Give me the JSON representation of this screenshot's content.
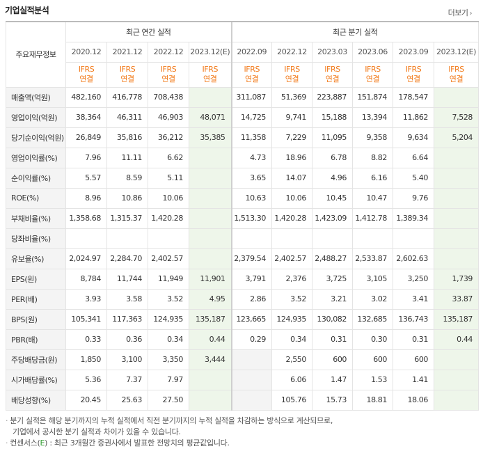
{
  "section": {
    "title": "기업실적분석",
    "more_label": "더보기"
  },
  "headers": {
    "label_col": "주요재무정보",
    "annual_group": "최근 연간 실적",
    "quarterly_group": "최근 분기 실적",
    "annual_periods": [
      "2020.12",
      "2021.12",
      "2022.12",
      "2023.12(E)"
    ],
    "quarterly_periods": [
      "2022.09",
      "2022.12",
      "2023.03",
      "2023.06",
      "2023.09",
      "2023.12(E)"
    ],
    "ifrs_top": "IFRS",
    "ifrs_bottom": "연결"
  },
  "rows": [
    {
      "label": "매출액(억원)",
      "annual": [
        "482,160",
        "416,778",
        "708,438",
        ""
      ],
      "quarterly": [
        "311,087",
        "51,369",
        "223,887",
        "151,874",
        "178,547",
        ""
      ]
    },
    {
      "label": "영업이익(억원)",
      "annual": [
        "38,364",
        "46,311",
        "46,903",
        "48,071"
      ],
      "quarterly": [
        "14,725",
        "9,741",
        "15,188",
        "13,394",
        "11,862",
        "7,528"
      ]
    },
    {
      "label": "당기순이익(억원)",
      "annual": [
        "26,849",
        "35,816",
        "36,212",
        "35,385"
      ],
      "quarterly": [
        "11,358",
        "7,229",
        "11,095",
        "9,358",
        "9,634",
        "5,204"
      ]
    },
    {
      "label": "영업이익률(%)",
      "annual": [
        "7.96",
        "11.11",
        "6.62",
        ""
      ],
      "quarterly": [
        "4.73",
        "18.96",
        "6.78",
        "8.82",
        "6.64",
        ""
      ]
    },
    {
      "label": "순이익률(%)",
      "annual": [
        "5.57",
        "8.59",
        "5.11",
        ""
      ],
      "quarterly": [
        "3.65",
        "14.07",
        "4.96",
        "6.16",
        "5.40",
        ""
      ]
    },
    {
      "label": "ROE(%)",
      "annual": [
        "8.96",
        "10.86",
        "10.06",
        ""
      ],
      "quarterly": [
        "10.63",
        "10.06",
        "10.45",
        "10.47",
        "9.76",
        ""
      ]
    },
    {
      "label": "부채비율(%)",
      "annual": [
        "1,358.68",
        "1,315.37",
        "1,420.28",
        ""
      ],
      "quarterly": [
        "1,513.30",
        "1,420.28",
        "1,423.09",
        "1,412.78",
        "1,389.34",
        ""
      ]
    },
    {
      "label": "당좌비율(%)",
      "annual": [
        "",
        "",
        "",
        ""
      ],
      "quarterly": [
        "",
        "",
        "",
        "",
        "",
        ""
      ]
    },
    {
      "label": "유보율(%)",
      "annual": [
        "2,024.97",
        "2,284.70",
        "2,402.57",
        ""
      ],
      "quarterly": [
        "2,379.54",
        "2,402.57",
        "2,488.27",
        "2,533.87",
        "2,602.63",
        ""
      ]
    },
    {
      "label": "EPS(원)",
      "annual": [
        "8,784",
        "11,744",
        "11,949",
        "11,901"
      ],
      "quarterly": [
        "3,791",
        "2,376",
        "3,725",
        "3,105",
        "3,250",
        "1,739"
      ]
    },
    {
      "label": "PER(배)",
      "annual": [
        "3.93",
        "3.58",
        "3.52",
        "4.95"
      ],
      "quarterly": [
        "2.86",
        "3.52",
        "3.21",
        "3.02",
        "3.41",
        "33.87"
      ]
    },
    {
      "label": "BPS(원)",
      "annual": [
        "105,341",
        "117,363",
        "124,935",
        "135,187"
      ],
      "quarterly": [
        "123,665",
        "124,935",
        "130,082",
        "132,685",
        "136,743",
        "135,187"
      ]
    },
    {
      "label": "PBR(배)",
      "annual": [
        "0.33",
        "0.36",
        "0.34",
        "0.44"
      ],
      "quarterly": [
        "0.29",
        "0.34",
        "0.31",
        "0.30",
        "0.31",
        "0.44"
      ]
    },
    {
      "label": "주당배당금(원)",
      "annual": [
        "1,850",
        "3,100",
        "3,350",
        "3,444"
      ],
      "quarterly": [
        "",
        "2,550",
        "600",
        "600",
        "600",
        ""
      ]
    },
    {
      "label": "시가배당률(%)",
      "annual": [
        "5.36",
        "7.37",
        "7.97",
        ""
      ],
      "quarterly": [
        "",
        "6.06",
        "1.47",
        "1.53",
        "1.41",
        ""
      ]
    },
    {
      "label": "배당성향(%)",
      "annual": [
        "20.45",
        "25.63",
        "27.50",
        ""
      ],
      "quarterly": [
        "",
        "105.76",
        "15.73",
        "18.81",
        "18.06",
        ""
      ]
    }
  ],
  "notes": {
    "note1_line1": "분기 실적은 해당 분기까지의 누적 실적에서 직전 분기까지의 누적 실적을 차감하는 방식으로 계산되므로,",
    "note1_line2": "기업에서 공시한 분기 실적과 차이가 있을 수 있습니다.",
    "note2_prefix": "컨센서스(",
    "note2_e": "E",
    "note2_suffix": ") : 최근 3개월간 증권사에서 발표한 전망치의 평균값입니다."
  },
  "colors": {
    "ifrs": "#f27a1a",
    "estimate_bg": "#eef6ea",
    "label_bg": "#f4f4f4",
    "estimate_text": "#2d9b2d"
  },
  "icons": {
    "more": "chevron-right-icon"
  }
}
